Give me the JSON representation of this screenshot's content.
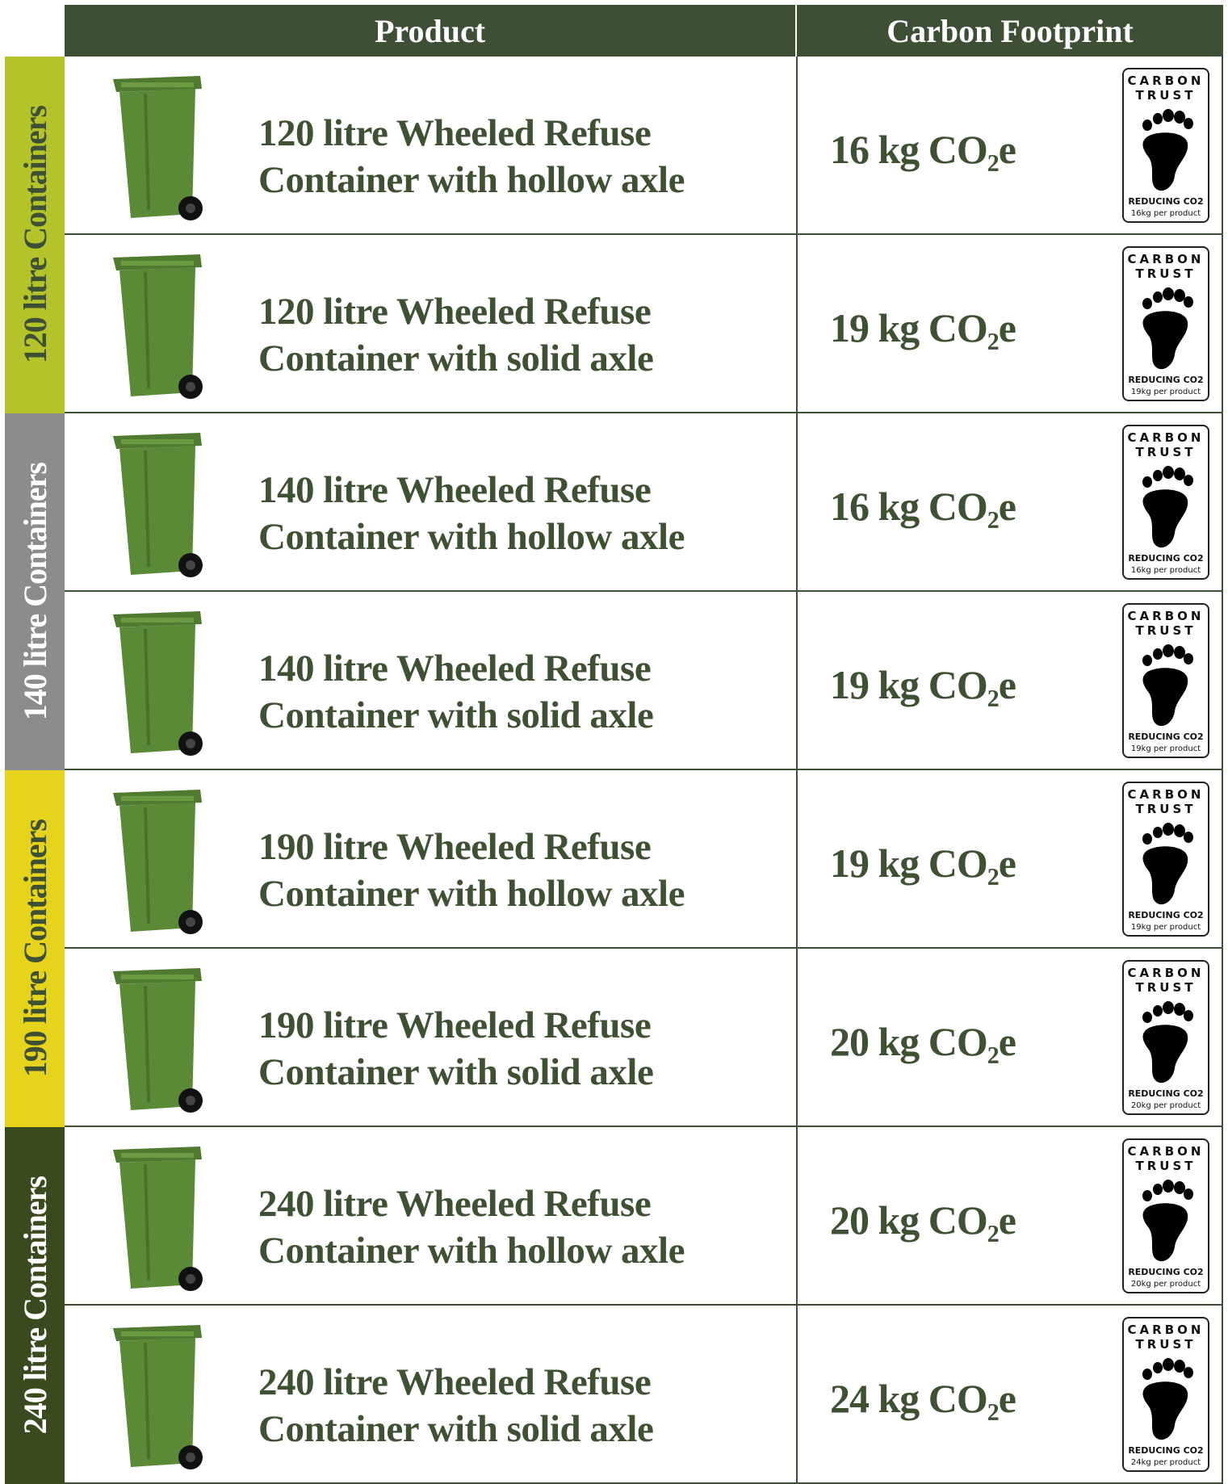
{
  "header": {
    "product": "Product",
    "footprint": "Carbon Footprint"
  },
  "groups": [
    {
      "label": "120 litre Containers",
      "color": "#b5c32a",
      "rows": [
        {
          "product": [
            "120 litre Wheeled Refuse",
            "Container with hollow axle"
          ],
          "footprint": "16 kg CO₂e",
          "badge": [
            "CARBON",
            "TRUST",
            "REDUCING CO2",
            "16kg per product"
          ]
        },
        {
          "product": [
            "120 litre Wheeled Refuse",
            "Container with solid axle"
          ],
          "footprint": "19 kg CO₂e",
          "badge": [
            "CARBON",
            "TRUST",
            "REDUCING CO2",
            "19kg per product"
          ]
        }
      ]
    },
    {
      "label": "140 litre Containers",
      "color": "#8b8c8e",
      "rows": [
        {
          "product": [
            "140 litre Wheeled Refuse",
            "Container with hollow axle"
          ],
          "footprint": "16 kg CO₂e",
          "badge": [
            "CARBON",
            "TRUST",
            "REDUCING CO2",
            "16kg per product"
          ]
        },
        {
          "product": [
            "140 litre Wheeled Refuse",
            "Container with solid axle"
          ],
          "footprint": "19 kg CO₂e",
          "badge": [
            "CARBON",
            "TRUST",
            "REDUCING CO2",
            "19kg per product"
          ]
        }
      ]
    },
    {
      "label": "190 litre Containers",
      "color": "#e6d41c",
      "rows": [
        {
          "product": [
            "190 litre Wheeled Refuse",
            "Container with hollow axle"
          ],
          "footprint": "19 kg CO₂e",
          "badge": [
            "CARBON",
            "TRUST",
            "REDUCING CO2",
            "19kg per product"
          ]
        },
        {
          "product": [
            "190 litre Wheeled Refuse",
            "Container with solid axle"
          ],
          "footprint": "20 kg CO₂e",
          "badge": [
            "CARBON",
            "TRUST",
            "REDUCING CO2",
            "20kg per product"
          ]
        }
      ]
    },
    {
      "label": "240 litre Containers",
      "color": "#3a4a1f",
      "rows": [
        {
          "product": [
            "240 litre Wheeled Refuse",
            "Container with hollow axle"
          ],
          "footprint": "20 kg CO₂e",
          "badge": [
            "CARBON",
            "TRUST",
            "REDUCING CO2",
            "20kg per product"
          ]
        },
        {
          "product": [
            "240 litre Wheeled Refuse",
            "Container with solid axle"
          ],
          "footprint": "24 kg CO₂e",
          "badge": [
            "CARBON",
            "TRUST",
            "REDUCING CO2",
            "24kg per product"
          ]
        }
      ]
    }
  ]
}
